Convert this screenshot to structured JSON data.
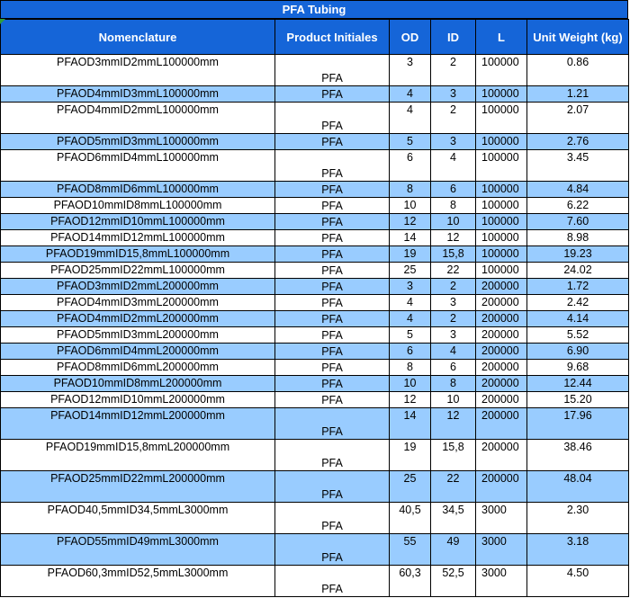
{
  "title": "PFA Tubing",
  "headers": [
    "Nomenclature",
    "Product Initiales",
    "OD",
    "ID",
    "L",
    "Unit Weight (kg)"
  ],
  "rows": [
    {
      "nomenclature": "PFAOD3mmID2mmL100000mm",
      "product": "PFA",
      "od": "3",
      "id": "2",
      "l": "100000",
      "weight": "0.86"
    },
    {
      "nomenclature": "PFAOD4mmID3mmL100000mm",
      "product": "PFA",
      "od": "4",
      "id": "3",
      "l": "100000",
      "weight": "1.21"
    },
    {
      "nomenclature": "PFAOD4mmID2mmL100000mm",
      "product": "PFA",
      "od": "4",
      "id": "2",
      "l": "100000",
      "weight": "2.07"
    },
    {
      "nomenclature": "PFAOD5mmID3mmL100000mm",
      "product": "PFA",
      "od": "5",
      "id": "3",
      "l": "100000",
      "weight": "2.76"
    },
    {
      "nomenclature": "PFAOD6mmID4mmL100000mm",
      "product": "PFA",
      "od": "6",
      "id": "4",
      "l": "100000",
      "weight": "3.45"
    },
    {
      "nomenclature": "PFAOD8mmID6mmL100000mm",
      "product": "PFA",
      "od": "8",
      "id": "6",
      "l": "100000",
      "weight": "4.84"
    },
    {
      "nomenclature": "PFAOD10mmID8mmL100000mm",
      "product": "PFA",
      "od": "10",
      "id": "8",
      "l": "100000",
      "weight": "6.22"
    },
    {
      "nomenclature": "PFAOD12mmID10mmL100000mm",
      "product": "PFA",
      "od": "12",
      "id": "10",
      "l": "100000",
      "weight": "7.60"
    },
    {
      "nomenclature": "PFAOD14mmID12mmL100000mm",
      "product": "PFA",
      "od": "14",
      "id": "12",
      "l": "100000",
      "weight": "8.98"
    },
    {
      "nomenclature": "PFAOD19mmID15,8mmL100000mm",
      "product": "PFA",
      "od": "19",
      "id": "15,8",
      "l": "100000",
      "weight": "19.23"
    },
    {
      "nomenclature": "PFAOD25mmID22mmL100000mm",
      "product": "PFA",
      "od": "25",
      "id": "22",
      "l": "100000",
      "weight": "24.02"
    },
    {
      "nomenclature": "PFAOD3mmID2mmL200000mm",
      "product": "PFA",
      "od": "3",
      "id": "2",
      "l": "200000",
      "weight": "1.72"
    },
    {
      "nomenclature": "PFAOD4mmID3mmL200000mm",
      "product": "PFA",
      "od": "4",
      "id": "3",
      "l": "200000",
      "weight": "2.42"
    },
    {
      "nomenclature": "PFAOD4mmID2mmL200000mm",
      "product": "PFA",
      "od": "4",
      "id": "2",
      "l": "200000",
      "weight": "4.14"
    },
    {
      "nomenclature": "PFAOD5mmID3mmL200000mm",
      "product": "PFA",
      "od": "5",
      "id": "3",
      "l": "200000",
      "weight": "5.52"
    },
    {
      "nomenclature": "PFAOD6mmID4mmL200000mm",
      "product": "PFA",
      "od": "6",
      "id": "4",
      "l": "200000",
      "weight": "6.90"
    },
    {
      "nomenclature": "PFAOD8mmID6mmL200000mm",
      "product": "PFA",
      "od": "8",
      "id": "6",
      "l": "200000",
      "weight": "9.68"
    },
    {
      "nomenclature": "PFAOD10mmID8mmL200000mm",
      "product": "PFA",
      "od": "10",
      "id": "8",
      "l": "200000",
      "weight": "12.44"
    },
    {
      "nomenclature": "PFAOD12mmID10mmL200000mm",
      "product": "PFA",
      "od": "12",
      "id": "10",
      "l": "200000",
      "weight": "15.20"
    },
    {
      "nomenclature": "PFAOD14mmID12mmL200000mm",
      "product": "PFA",
      "od": "14",
      "id": "12",
      "l": "200000",
      "weight": "17.96"
    },
    {
      "nomenclature": "PFAOD19mmID15,8mmL200000mm",
      "product": "PFA",
      "od": "19",
      "id": "15,8",
      "l": "200000",
      "weight": "38.46"
    },
    {
      "nomenclature": "PFAOD25mmID22mmL200000mm",
      "product": "PFA",
      "od": "25",
      "id": "22",
      "l": "200000",
      "weight": "48.04"
    },
    {
      "nomenclature": "PFAOD40,5mmID34,5mmL3000mm",
      "product": "PFA",
      "od": "40,5",
      "id": "34,5",
      "l": "3000",
      "weight": "2.30"
    },
    {
      "nomenclature": "PFAOD55mmID49mmL3000mm",
      "product": "PFA",
      "od": "55",
      "id": "49",
      "l": "3000",
      "weight": "3.18"
    },
    {
      "nomenclature": "PFAOD60,3mmID52,5mmL3000mm",
      "product": "PFA",
      "od": "60,3",
      "id": "52,5",
      "l": "3000",
      "weight": "4.50"
    }
  ],
  "colors": {
    "header_blue": "#1565d8",
    "row_blue": "#99ccff",
    "row_white": "#ffffff",
    "corner_green": "#2e9e3a"
  }
}
